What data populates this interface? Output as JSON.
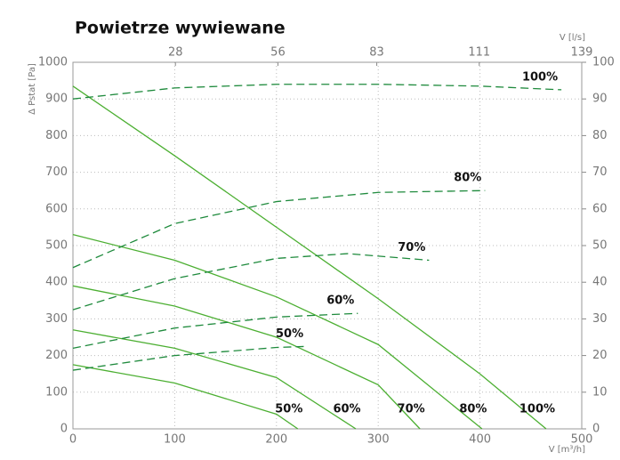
{
  "chart_data": {
    "type": "line",
    "title": "Powietrze wywiewane",
    "x_label": "V [m³/h]",
    "x2_label": "V [l/s]",
    "y_label": "Δ Pstat [Pa]",
    "xlim": [
      0,
      500
    ],
    "xticks": [
      0,
      100,
      200,
      300,
      400,
      500
    ],
    "x2lim": [
      0,
      139
    ],
    "x2ticks": [
      28,
      56,
      83,
      111,
      139
    ],
    "ylim": [
      0,
      1000
    ],
    "yticks": [
      0,
      100,
      200,
      300,
      400,
      500,
      600,
      700,
      800,
      900,
      1000
    ],
    "y2lim": [
      0,
      100
    ],
    "y2ticks": [
      0,
      10,
      20,
      30,
      40,
      50,
      60,
      70,
      80,
      90,
      100
    ],
    "grid": true,
    "series": [
      {
        "name": "50%",
        "style": "solid",
        "color": "#4caf32",
        "x": [
          0,
          100,
          200,
          221
        ],
        "values": [
          175,
          125,
          40,
          0
        ]
      },
      {
        "name": "60%",
        "style": "solid",
        "color": "#4caf32",
        "x": [
          0,
          100,
          200,
          278
        ],
        "values": [
          270,
          220,
          140,
          0
        ]
      },
      {
        "name": "70%",
        "style": "solid",
        "color": "#4caf32",
        "x": [
          0,
          100,
          200,
          300,
          341
        ],
        "values": [
          390,
          335,
          250,
          120,
          0
        ]
      },
      {
        "name": "80%",
        "style": "solid",
        "color": "#4caf32",
        "x": [
          0,
          100,
          200,
          300,
          402
        ],
        "values": [
          530,
          460,
          360,
          230,
          0
        ]
      },
      {
        "name": "100%",
        "style": "solid",
        "color": "#4caf32",
        "x": [
          0,
          100,
          200,
          300,
          400,
          465
        ],
        "values": [
          935,
          745,
          550,
          355,
          150,
          0
        ]
      },
      {
        "name": "50%",
        "style": "dashed",
        "color": "#1e8a3c",
        "x": [
          0,
          100,
          200,
          230
        ],
        "values": [
          160,
          200,
          222,
          225
        ]
      },
      {
        "name": "60%",
        "style": "dashed",
        "color": "#1e8a3c",
        "x": [
          0,
          100,
          200,
          280
        ],
        "values": [
          220,
          275,
          305,
          315
        ]
      },
      {
        "name": "70%",
        "style": "dashed",
        "color": "#1e8a3c",
        "x": [
          0,
          100,
          200,
          270,
          350
        ],
        "values": [
          325,
          410,
          465,
          478,
          460
        ]
      },
      {
        "name": "80%",
        "style": "dashed",
        "color": "#1e8a3c",
        "x": [
          0,
          100,
          200,
          300,
          405
        ],
        "values": [
          440,
          560,
          620,
          645,
          650
        ]
      },
      {
        "name": "100%",
        "style": "dashed",
        "color": "#1e8a3c",
        "x": [
          0,
          100,
          200,
          300,
          400,
          480
        ],
        "values": [
          900,
          930,
          940,
          940,
          935,
          925
        ]
      }
    ]
  }
}
